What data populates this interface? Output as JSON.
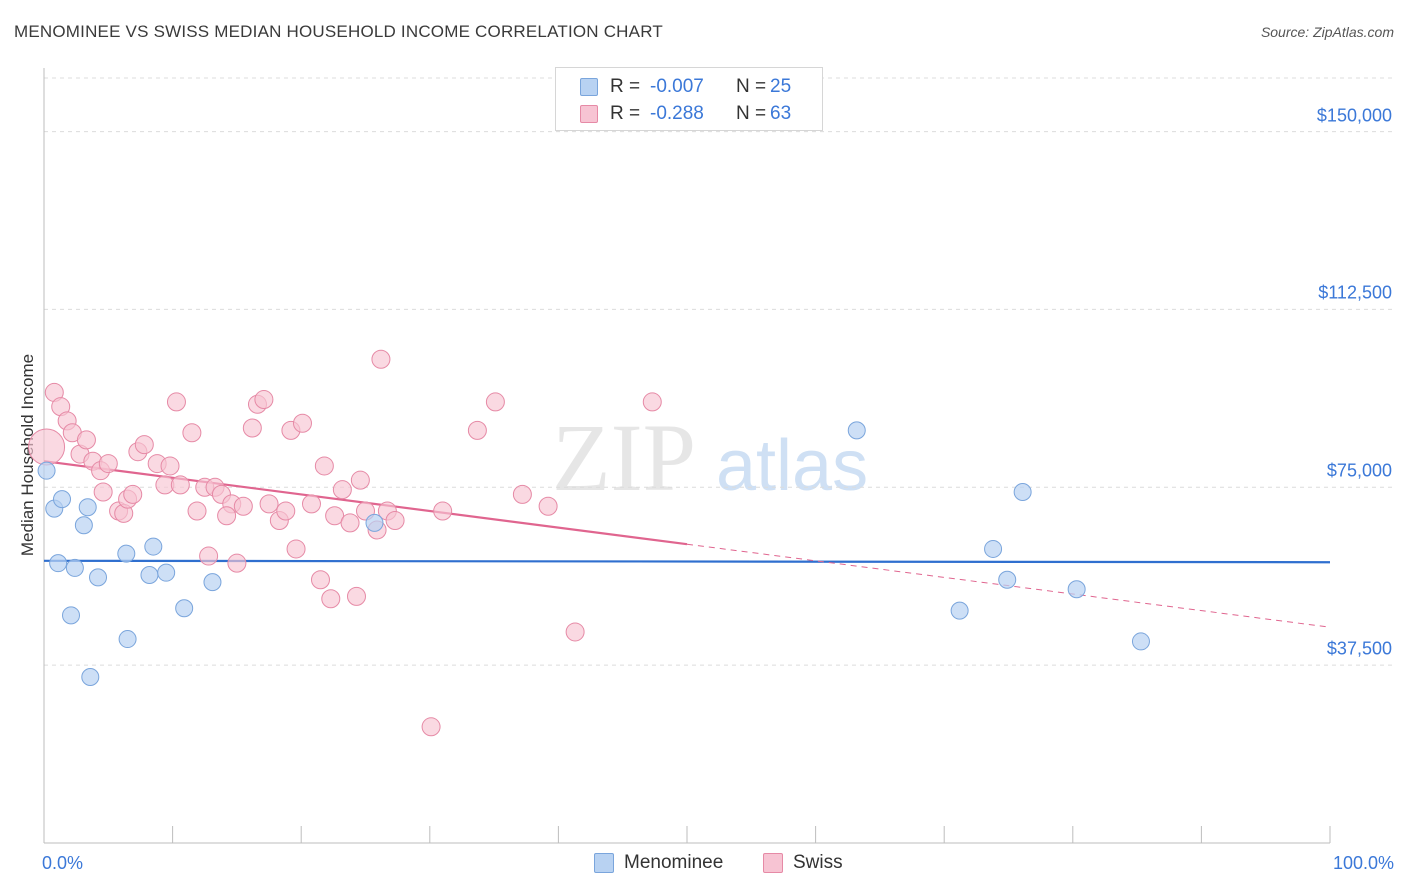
{
  "header": {
    "title": "MENOMINEE VS SWISS MEDIAN HOUSEHOLD INCOME CORRELATION CHART",
    "source": "Source: ZipAtlas.com"
  },
  "watermark": {
    "zip": "ZIP",
    "atlas": "atlas"
  },
  "legend": {
    "rows": [
      {
        "r_label": "R =",
        "r_value": "-0.007",
        "n_label": "N =",
        "n_value": "25"
      },
      {
        "r_label": "R =",
        "r_value": "-0.288",
        "n_label": "N =",
        "n_value": "63"
      }
    ],
    "bottom": [
      "Menominee",
      "Swiss"
    ]
  },
  "colors": {
    "menominee_fill": "#b8d2f2",
    "menominee_stroke": "#7aa5dc",
    "menominee_line": "#2f6fcf",
    "swiss_fill": "#f7c4d3",
    "swiss_stroke": "#e68aa6",
    "swiss_line": "#e0658f",
    "tick_text": "#3b78d8",
    "grid": "#dcdcdc"
  },
  "chart_data": {
    "type": "scatter",
    "title": "MENOMINEE VS SWISS MEDIAN HOUSEHOLD INCOME CORRELATION CHART",
    "xlabel": "",
    "ylabel": "Median Household Income",
    "xlim": [
      0,
      100
    ],
    "ylim": [
      0,
      157500
    ],
    "x_tick_labels": [
      "0.0%",
      "100.0%"
    ],
    "y_ticks": [
      37500,
      75000,
      112500,
      150000
    ],
    "y_tick_labels": [
      "$37,500",
      "$75,000",
      "$112,500",
      "$150,000"
    ],
    "grid": true,
    "legend_position": "top-center",
    "series": [
      {
        "name": "Menominee",
        "points": [
          [
            0.2,
            78500
          ],
          [
            0.8,
            70500
          ],
          [
            1.1,
            59000
          ],
          [
            1.4,
            72500
          ],
          [
            2.1,
            48000
          ],
          [
            2.4,
            58000
          ],
          [
            3.1,
            67000
          ],
          [
            3.4,
            70800
          ],
          [
            3.6,
            35000
          ],
          [
            4.2,
            56000
          ],
          [
            6.5,
            43000
          ],
          [
            6.4,
            61000
          ],
          [
            8.2,
            56500
          ],
          [
            8.5,
            62500
          ],
          [
            9.5,
            57000
          ],
          [
            10.9,
            49500
          ],
          [
            13.1,
            55000
          ],
          [
            25.7,
            67500
          ],
          [
            63.2,
            87000
          ],
          [
            71.2,
            49000
          ],
          [
            73.8,
            62000
          ],
          [
            74.9,
            55500
          ],
          [
            76.1,
            74000
          ],
          [
            80.3,
            53500
          ],
          [
            85.3,
            42500
          ]
        ],
        "trend": {
          "x": [
            0,
            100
          ],
          "y": [
            59500,
            59200
          ]
        }
      },
      {
        "name": "Swiss",
        "points": [
          [
            0.2,
            83500
          ],
          [
            0.8,
            95000
          ],
          [
            1.3,
            92000
          ],
          [
            1.8,
            89000
          ],
          [
            2.2,
            86500
          ],
          [
            2.8,
            82000
          ],
          [
            3.3,
            85000
          ],
          [
            3.8,
            80500
          ],
          [
            4.4,
            78500
          ],
          [
            5.0,
            80000
          ],
          [
            4.6,
            74000
          ],
          [
            5.8,
            70000
          ],
          [
            6.2,
            69500
          ],
          [
            6.5,
            72500
          ],
          [
            7.3,
            82500
          ],
          [
            7.8,
            84000
          ],
          [
            6.9,
            73500
          ],
          [
            8.8,
            80000
          ],
          [
            9.4,
            75500
          ],
          [
            9.8,
            79500
          ],
          [
            10.3,
            93000
          ],
          [
            10.6,
            75500
          ],
          [
            11.5,
            86500
          ],
          [
            11.9,
            70000
          ],
          [
            12.5,
            75000
          ],
          [
            12.8,
            60500
          ],
          [
            13.3,
            75000
          ],
          [
            13.8,
            73500
          ],
          [
            14.6,
            71500
          ],
          [
            14.2,
            69000
          ],
          [
            15.0,
            59000
          ],
          [
            15.5,
            71000
          ],
          [
            16.2,
            87500
          ],
          [
            16.6,
            92500
          ],
          [
            17.1,
            93500
          ],
          [
            17.5,
            71500
          ],
          [
            18.3,
            68000
          ],
          [
            18.8,
            70000
          ],
          [
            19.2,
            87000
          ],
          [
            19.6,
            62000
          ],
          [
            20.1,
            88500
          ],
          [
            20.8,
            71500
          ],
          [
            21.5,
            55500
          ],
          [
            21.8,
            79500
          ],
          [
            22.3,
            51500
          ],
          [
            22.6,
            69000
          ],
          [
            23.2,
            74500
          ],
          [
            23.8,
            67500
          ],
          [
            24.3,
            52000
          ],
          [
            24.6,
            76500
          ],
          [
            25.0,
            70000
          ],
          [
            25.9,
            66000
          ],
          [
            26.2,
            102000
          ],
          [
            26.7,
            70000
          ],
          [
            27.3,
            68000
          ],
          [
            30.1,
            24500
          ],
          [
            31.0,
            70000
          ],
          [
            33.7,
            87000
          ],
          [
            35.1,
            93000
          ],
          [
            37.2,
            73500
          ],
          [
            39.2,
            71000
          ],
          [
            41.3,
            44500
          ],
          [
            47.3,
            93000
          ]
        ],
        "trend_solid": {
          "x": [
            0,
            50
          ],
          "y": [
            80500,
            63000
          ]
        },
        "trend_dashed": {
          "x": [
            50,
            100
          ],
          "y": [
            63000,
            45500
          ]
        }
      }
    ]
  }
}
